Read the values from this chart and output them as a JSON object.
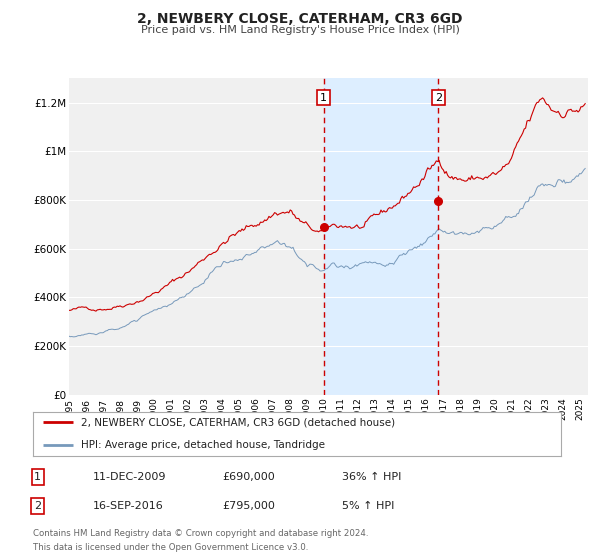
{
  "title": "2, NEWBERY CLOSE, CATERHAM, CR3 6GD",
  "subtitle": "Price paid vs. HM Land Registry's House Price Index (HPI)",
  "ylim": [
    0,
    1300000
  ],
  "xlim_start": 1995.0,
  "xlim_end": 2025.5,
  "yticks": [
    0,
    200000,
    400000,
    600000,
    800000,
    1000000,
    1200000
  ],
  "ytick_labels": [
    "£0",
    "£200K",
    "£400K",
    "£600K",
    "£800K",
    "£1M",
    "£1.2M"
  ],
  "xticks": [
    1995,
    1996,
    1997,
    1998,
    1999,
    2000,
    2001,
    2002,
    2003,
    2004,
    2005,
    2006,
    2007,
    2008,
    2009,
    2010,
    2011,
    2012,
    2013,
    2014,
    2015,
    2016,
    2017,
    2018,
    2019,
    2020,
    2021,
    2022,
    2023,
    2024,
    2025
  ],
  "red_line_color": "#cc0000",
  "blue_line_color": "#7799bb",
  "sale1_x": 2009.958,
  "sale1_y": 690000,
  "sale2_x": 2016.708,
  "sale2_y": 795000,
  "vline1_x": 2009.958,
  "vline2_x": 2016.708,
  "shade_start": 2009.958,
  "shade_end": 2016.708,
  "shade_color": "#ddeeff",
  "legend_line1": "2, NEWBERY CLOSE, CATERHAM, CR3 6GD (detached house)",
  "legend_line2": "HPI: Average price, detached house, Tandridge",
  "table_row1_num": "1",
  "table_row1_date": "11-DEC-2009",
  "table_row1_price": "£690,000",
  "table_row1_hpi": "36% ↑ HPI",
  "table_row2_num": "2",
  "table_row2_date": "16-SEP-2016",
  "table_row2_price": "£795,000",
  "table_row2_hpi": "5% ↑ HPI",
  "footnote1": "Contains HM Land Registry data © Crown copyright and database right 2024.",
  "footnote2": "This data is licensed under the Open Government Licence v3.0.",
  "bg_color": "#ffffff",
  "plot_bg_color": "#f0f0f0",
  "grid_color": "#ffffff"
}
